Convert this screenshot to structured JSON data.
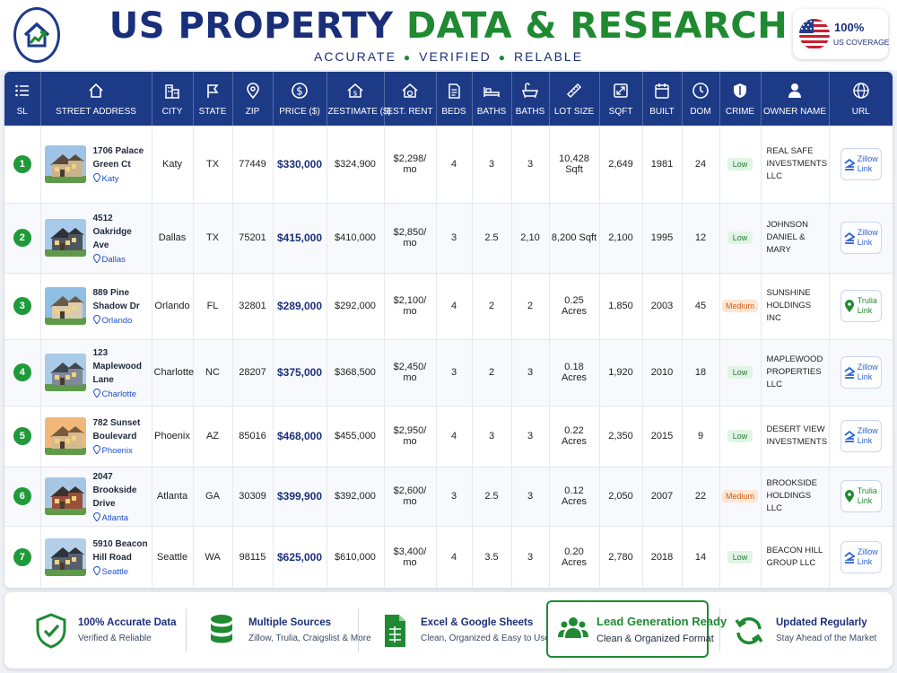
{
  "header": {
    "title_part1": "US PROPERTY",
    "title_part2": "DATA & RESEARCH",
    "tagline": [
      "ACCURATE",
      "VERIFIED",
      "RELABLE"
    ],
    "coverage_pct": "100%",
    "coverage_label": "US COVERAGE"
  },
  "table": {
    "columns": [
      "SL",
      "STREET ADDRESS",
      "CITY",
      "STATE",
      "ZIP",
      "PRICE ($)",
      "ZESTIMATE ($)",
      "EST. RENT",
      "BEDS",
      "BATHS",
      "BATHS",
      "LOT SIZE",
      "SQFT",
      "BUILT",
      "DOM",
      "CRIME",
      "OWNER NAME",
      "URL"
    ],
    "column_icons": [
      "list-icon",
      "home-icon",
      "city-icon",
      "flag-icon",
      "map-pin-icon",
      "dollar-icon",
      "house-dollar-icon",
      "house-rent-icon",
      "bed-icon",
      "bath-icon",
      "bathtub-icon",
      "ruler-icon",
      "area-icon",
      "calendar-icon",
      "clock-icon",
      "shield-icon",
      "person-icon",
      "globe-icon"
    ],
    "rows": [
      {
        "sl": "1",
        "street": "1706 Palace Green Ct",
        "loc": "Katy",
        "city": "Katy",
        "state": "TX",
        "zip": "77449",
        "price": "$330,000",
        "zestimate": "$324,900",
        "rent": "$2,298/ mo",
        "beds": "4",
        "baths": "3",
        "baths2": "3",
        "lot": "10,428 Sqft",
        "sqft": "2,649",
        "built": "1981",
        "dom": "24",
        "crime": "Low",
        "owner": "REAL SAFE INVESTMENTS LLC",
        "url": "Zillow Link",
        "source": "zillow"
      },
      {
        "sl": "2",
        "street": "4512 Oakridge Ave",
        "loc": "Dallas",
        "city": "Dallas",
        "state": "TX",
        "zip": "75201",
        "price": "$415,000",
        "zestimate": "$410,000",
        "rent": "$2,850/ mo",
        "beds": "3",
        "baths": "2.5",
        "baths2": "2,10",
        "lot": "8,200 Sqft",
        "sqft": "2,100",
        "built": "1995",
        "dom": "12",
        "crime": "Low",
        "owner": "JOHNSON DANIEL & MARY",
        "url": "Zillow Link",
        "source": "zillow"
      },
      {
        "sl": "3",
        "street": "889 Pine Shadow Dr",
        "loc": "Orlando",
        "city": "Orlando",
        "state": "FL",
        "zip": "32801",
        "price": "$289,000",
        "zestimate": "$292,000",
        "rent": "$2,100/ mo",
        "beds": "4",
        "baths": "2",
        "baths2": "2",
        "lot": "0.25 Acres",
        "sqft": "1,850",
        "built": "2003",
        "dom": "45",
        "crime": "Medium",
        "owner": "SUNSHINE HOLDINGS INC",
        "url": "Trulia Link",
        "source": "trulia"
      },
      {
        "sl": "4",
        "street": "123 Maplewood Lane",
        "loc": "Charlotte",
        "city": "Charlotte",
        "state": "NC",
        "zip": "28207",
        "price": "$375,000",
        "zestimate": "$368,500",
        "rent": "$2,450/ mo",
        "beds": "3",
        "baths": "2",
        "baths2": "3",
        "lot": "0.18 Acres",
        "sqft": "1,920",
        "built": "2010",
        "dom": "18",
        "crime": "Low",
        "owner": "MAPLEWOOD PROPERTIES LLC",
        "url": "Zillow Link",
        "source": "zillow"
      },
      {
        "sl": "5",
        "street": "782 Sunset Boulevard",
        "loc": "Phoenix",
        "city": "Phoenix",
        "state": "AZ",
        "zip": "85016",
        "price": "$468,000",
        "zestimate": "$455,000",
        "rent": "$2,950/ mo",
        "beds": "4",
        "baths": "3",
        "baths2": "3",
        "lot": "0.22 Acres",
        "sqft": "2,350",
        "built": "2015",
        "dom": "9",
        "crime": "Low",
        "owner": "DESERT VIEW INVESTMENTS",
        "url": "Zillow Link",
        "source": "zillow"
      },
      {
        "sl": "6",
        "street": "2047 Brookside Drive",
        "loc": "Atlanta",
        "city": "Atlanta",
        "state": "GA",
        "zip": "30309",
        "price": "$399,900",
        "zestimate": "$392,000",
        "rent": "$2,600/ mo",
        "beds": "3",
        "baths": "2.5",
        "baths2": "3",
        "lot": "0.12 Acres",
        "sqft": "2,050",
        "built": "2007",
        "dom": "22",
        "crime": "Medium",
        "owner": "BROOKSIDE HOLDINGS LLC",
        "url": "Trulia Link",
        "source": "trulia"
      },
      {
        "sl": "7",
        "street": "5910 Beacon Hill Road",
        "loc": "Seattle",
        "city": "Seattle",
        "state": "WA",
        "zip": "98115",
        "price": "$625,000",
        "zestimate": "$610,000",
        "rent": "$3,400/ mo",
        "beds": "4",
        "baths": "3.5",
        "baths2": "3",
        "lot": "0.20 Acres",
        "sqft": "2,780",
        "built": "2018",
        "dom": "14",
        "crime": "Low",
        "owner": "BEACON HILL GROUP LLC",
        "url": "Zillow Link",
        "source": "zillow"
      }
    ]
  },
  "footer": {
    "features": [
      {
        "title": "100% Accurate Data",
        "subtitle": "Verified & Reliable",
        "icon": "shield-check-icon"
      },
      {
        "title": "Multiple Sources",
        "subtitle": "Zillow, Trulia, Craigslist & More",
        "icon": "database-icon"
      },
      {
        "title": "Excel & Google Sheets",
        "subtitle": "Clean, Organized & Easy to Use",
        "icon": "spreadsheet-icon"
      },
      {
        "title": "Lead Generation Ready",
        "subtitle": "Clean & Organized Format",
        "icon": "people-icon"
      },
      {
        "title": "Updated Regularly",
        "subtitle": "Stay Ahead of the Market",
        "icon": "refresh-icon"
      }
    ]
  },
  "colors": {
    "navy": "#1c3a86",
    "green": "#1f8a32",
    "zillow_blue": "#2b63d9",
    "medium_orange": "#d0601c"
  }
}
